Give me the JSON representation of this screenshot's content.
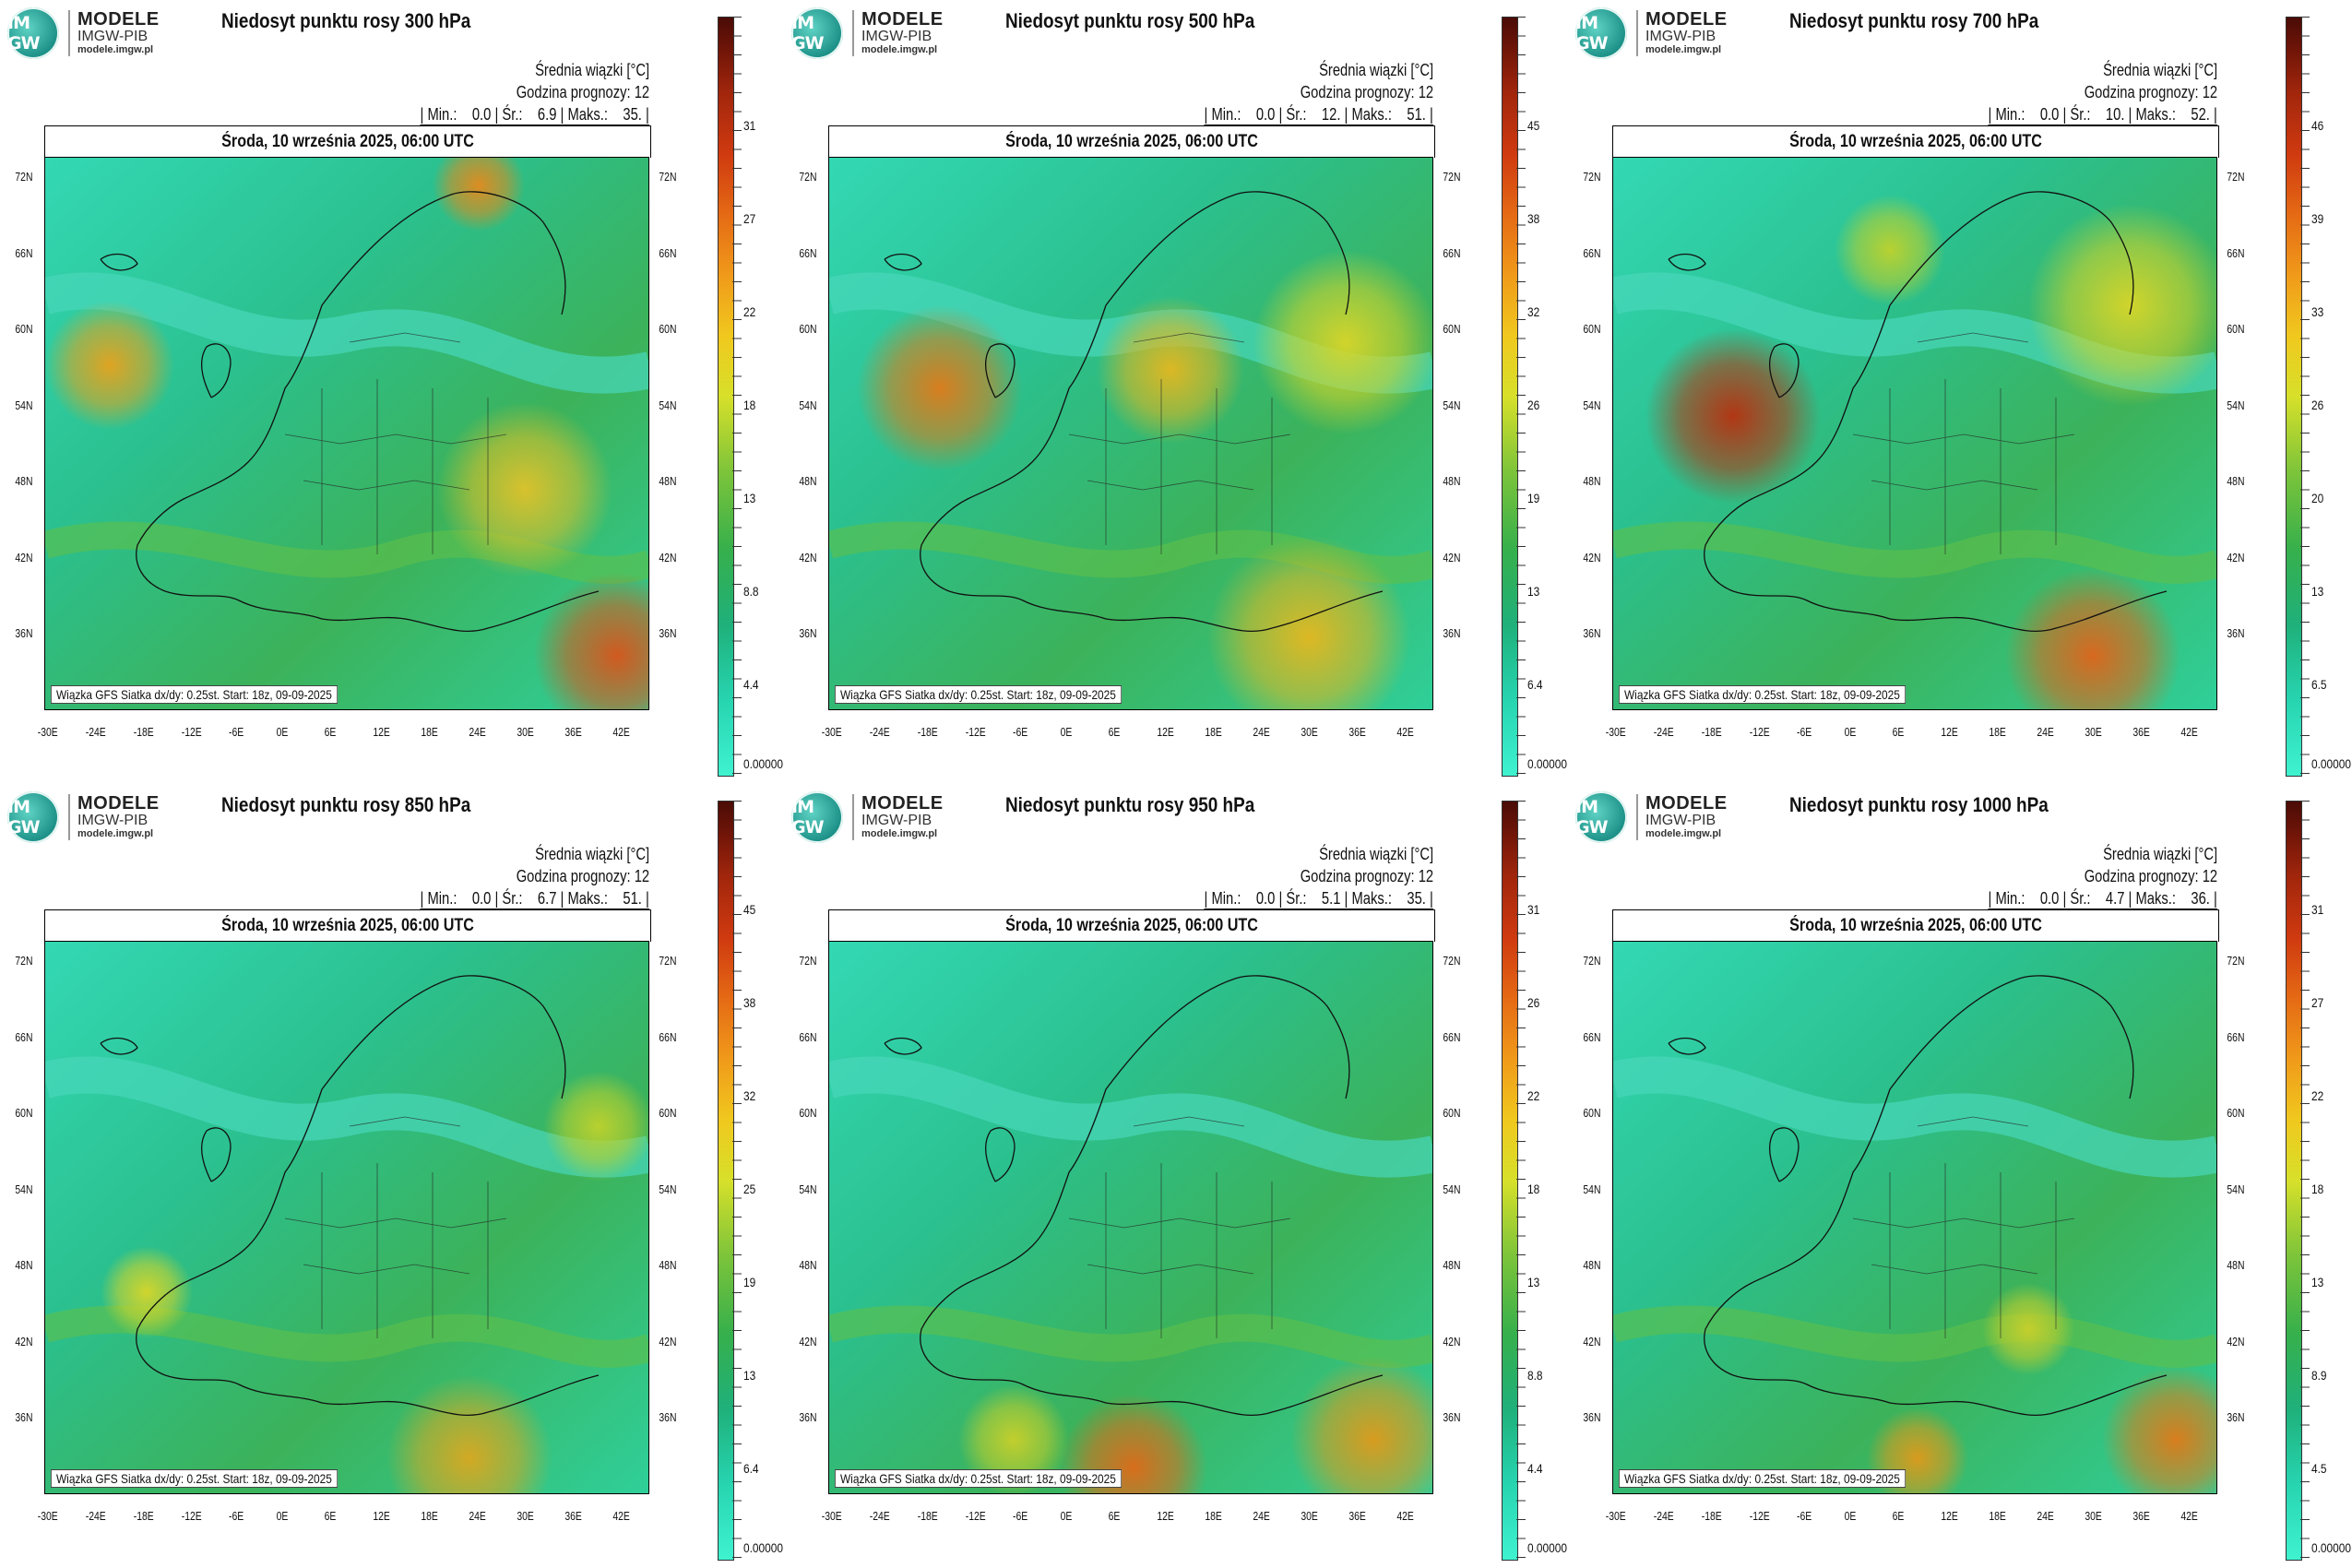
{
  "logo": {
    "badge": "IM GW",
    "line1": "MODELE",
    "line2": "IMGW-PIB",
    "line3": "modele.imgw.pl"
  },
  "common": {
    "subtitle": "Średnia wiązki [°C]",
    "forecast_hour": "Godzina prognozy: 12",
    "date": "Środa, 10 września 2025, 06:00 UTC",
    "footer": "Wiązka GFS Siatka dx/dy: 0.25st. Start: 18z, 09-09-2025",
    "lat_labels": [
      "72N",
      "66N",
      "60N",
      "54N",
      "48N",
      "42N",
      "36N"
    ],
    "lon_labels": [
      "-30E",
      "-24E",
      "-18E",
      "-12E",
      "-6E",
      "0E",
      "6E",
      "12E",
      "18E",
      "24E",
      "30E",
      "36E",
      "42E"
    ]
  },
  "panels": [
    {
      "title": "Niedosyt punktu rosy 300 hPa",
      "stats": "| Min.:    0.0 | Śr.:    6.9 | Maks.:    35. |",
      "scale": [
        "31",
        "27",
        "22",
        "18",
        "13",
        "8.8",
        "4.4",
        "0.00000"
      ]
    },
    {
      "title": "Niedosyt punktu rosy 500 hPa",
      "stats": "| Min.:    0.0 | Śr.:    12. | Maks.:    51. |",
      "scale": [
        "45",
        "38",
        "32",
        "26",
        "19",
        "13",
        "6.4",
        "0.00000"
      ]
    },
    {
      "title": "Niedosyt punktu rosy 700 hPa",
      "stats": "| Min.:    0.0 | Śr.:    10. | Maks.:    52. |",
      "scale": [
        "46",
        "39",
        "33",
        "26",
        "20",
        "13",
        "6.5",
        "0.00000"
      ]
    },
    {
      "title": "Niedosyt punktu rosy 850 hPa",
      "stats": "| Min.:    0.0 | Śr.:    6.7 | Maks.:    51. |",
      "scale": [
        "45",
        "38",
        "32",
        "25",
        "19",
        "13",
        "6.4",
        "0.00000"
      ]
    },
    {
      "title": "Niedosyt punktu rosy 950 hPa",
      "stats": "| Min.:    0.0 | Śr.:    5.1 | Maks.:    35. |",
      "scale": [
        "31",
        "26",
        "22",
        "18",
        "13",
        "8.8",
        "4.4",
        "0.00000"
      ]
    },
    {
      "title": "Niedosyt punktu rosy 1000 hPa",
      "stats": "| Min.:    0.0 | Śr.:    4.7 | Maks.:    36. |",
      "scale": [
        "31",
        "27",
        "22",
        "18",
        "13",
        "8.9",
        "4.5",
        "0.00000"
      ]
    }
  ]
}
